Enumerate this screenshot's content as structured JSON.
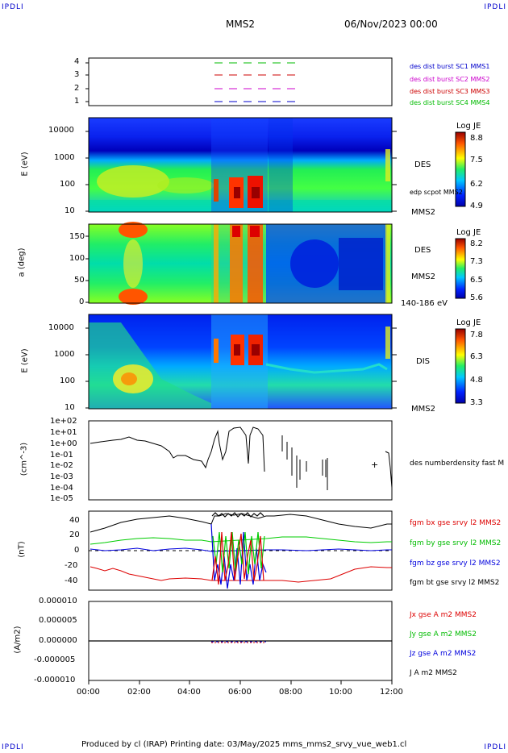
{
  "corners": {
    "tl": "IPDLI",
    "tr": "IPDLI",
    "bl": "IPDLI",
    "br": "IPDLI"
  },
  "header": {
    "spacecraft": "MMS2",
    "date": "06/Nov/2023 00:00"
  },
  "footer": {
    "text": "Produced by cl (IRAP)   Printing date: 03/May/2025   mms_mms2_srvy_vue_web1.cl"
  },
  "colors": {
    "c1": "#0000cc",
    "c2": "#cc00cc",
    "c3": "#cc0000",
    "c4": "#00bb00",
    "bx": "#dd0000",
    "by": "#00cc00",
    "bz": "#0000dd",
    "bt": "#000000"
  },
  "chart_data": [
    {
      "type": "scatter",
      "title": "",
      "ylabel": "",
      "yticks": [
        "1",
        "2",
        "3",
        "4"
      ],
      "legend": [
        "des dist burst SC1 MMS1",
        "des dist burst SC2 MMS2",
        "des dist burst SC3 MMS3",
        "des dist burst SC4 MMS4"
      ]
    },
    {
      "type": "heatmap",
      "ylabel": "E (eV)",
      "yticks": [
        "10",
        "100",
        "1000",
        "10000"
      ],
      "colorbar": {
        "title": "Log JE",
        "ticks": [
          "8.8",
          "7.5",
          "6.2",
          "4.9"
        ]
      },
      "side_labels": [
        "DES",
        "edp scpot MMS2",
        "MMS2"
      ]
    },
    {
      "type": "heatmap",
      "ylabel": "a (deg)",
      "yticks": [
        "0",
        "50",
        "100",
        "150"
      ],
      "ylim": [
        0,
        180
      ],
      "colorbar": {
        "title": "Log JE",
        "ticks": [
          "8.2",
          "7.3",
          "6.5",
          "5.6"
        ]
      },
      "side_labels": [
        "DES",
        "MMS2",
        "140-186 eV"
      ]
    },
    {
      "type": "heatmap",
      "ylabel": "E (eV)",
      "yticks": [
        "10",
        "100",
        "1000",
        "10000"
      ],
      "colorbar": {
        "title": "Log JE",
        "ticks": [
          "7.8",
          "6.3",
          "4.8",
          "3.3"
        ]
      },
      "side_labels": [
        "DIS",
        "MMS2"
      ]
    },
    {
      "type": "line",
      "ylabel": "(cm^-3)",
      "yticks": [
        "1e+02",
        "1e+01",
        "1e+00",
        "1e-01",
        "1e-02",
        "1e-03",
        "1e-04",
        "1e-05"
      ],
      "legend": [
        "des numberdensity fast M"
      ]
    },
    {
      "type": "line",
      "ylabel": "(nT)",
      "yticks": [
        "40",
        "20",
        "0",
        "-20",
        "-40"
      ],
      "ylim": [
        -50,
        50
      ],
      "legend": [
        "fgm bx gse srvy l2 MMS2",
        "fgm by gse srvy l2 MMS2",
        "fgm bz gse srvy l2 MMS2",
        "fgm bt gse srvy l2 MMS2"
      ]
    },
    {
      "type": "line",
      "ylabel": "(A/m2)",
      "yticks": [
        "0.000010",
        "0.000005",
        "0.000000",
        "-0.000005",
        "-0.000010"
      ],
      "ylim": [
        -1e-05,
        1e-05
      ],
      "legend": [
        "Jx gse A m2 MMS2",
        "Jy gse A m2 MMS2",
        "Jz gse A m2 MMS2",
        "J A m2 MMS2"
      ],
      "xticks": [
        "00:00",
        "02:00",
        "04:00",
        "06:00",
        "08:00",
        "10:00",
        "12:00"
      ]
    }
  ]
}
